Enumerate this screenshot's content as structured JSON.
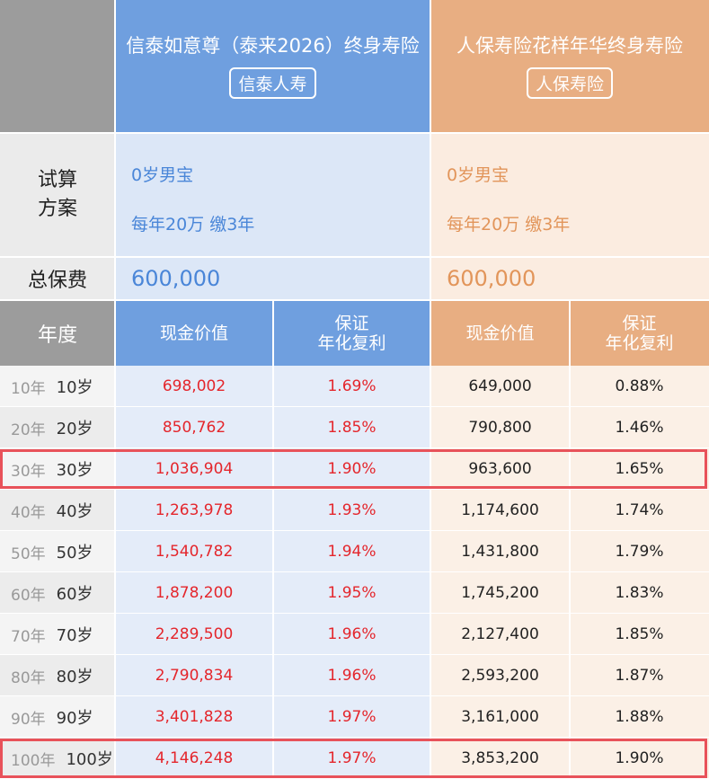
{
  "header": {
    "left": {
      "title": "信泰如意尊（泰来2026）终身寿险",
      "company": "信泰人寿",
      "color": "#6f9fdf"
    },
    "right": {
      "title": "人保寿险花样年华终身寿险",
      "company": "人保寿险",
      "color": "#e8ae82"
    }
  },
  "plan": {
    "label": "试算方案",
    "left": {
      "line1": "0岁男宝",
      "line2": "每年20万 缴3年"
    },
    "right": {
      "line1": "0岁男宝",
      "line2": "每年20万 缴3年"
    }
  },
  "premium": {
    "label": "总保费",
    "left": "600,000",
    "right": "600,000"
  },
  "columns": {
    "year": "年度",
    "cash_value": "现金价值",
    "rate_line1": "保证",
    "rate_line2": "年化复利"
  },
  "rows": [
    {
      "year": "10年",
      "age": "10岁",
      "left_cv": "698,002",
      "left_rate": "1.69%",
      "right_cv": "649,000",
      "right_rate": "0.88%"
    },
    {
      "year": "20年",
      "age": "20岁",
      "left_cv": "850,762",
      "left_rate": "1.85%",
      "right_cv": "790,800",
      "right_rate": "1.46%"
    },
    {
      "year": "30年",
      "age": "30岁",
      "left_cv": "1,036,904",
      "left_rate": "1.90%",
      "right_cv": "963,600",
      "right_rate": "1.65%",
      "highlight": true
    },
    {
      "year": "40年",
      "age": "40岁",
      "left_cv": "1,263,978",
      "left_rate": "1.93%",
      "right_cv": "1,174,600",
      "right_rate": "1.74%"
    },
    {
      "year": "50年",
      "age": "50岁",
      "left_cv": "1,540,782",
      "left_rate": "1.94%",
      "right_cv": "1,431,800",
      "right_rate": "1.79%"
    },
    {
      "year": "60年",
      "age": "60岁",
      "left_cv": "1,878,200",
      "left_rate": "1.95%",
      "right_cv": "1,745,200",
      "right_rate": "1.83%"
    },
    {
      "year": "70年",
      "age": "70岁",
      "left_cv": "2,289,500",
      "left_rate": "1.96%",
      "right_cv": "2,127,400",
      "right_rate": "1.85%"
    },
    {
      "year": "80年",
      "age": "80岁",
      "left_cv": "2,790,834",
      "left_rate": "1.96%",
      "right_cv": "2,593,200",
      "right_rate": "1.87%"
    },
    {
      "year": "90年",
      "age": "90岁",
      "left_cv": "3,401,828",
      "left_rate": "1.97%",
      "right_cv": "3,161,000",
      "right_rate": "1.88%"
    },
    {
      "year": "100年",
      "age": "100岁",
      "left_cv": "4,146,248",
      "left_rate": "1.97%",
      "right_cv": "3,853,200",
      "right_rate": "1.90%",
      "highlight": true
    }
  ]
}
